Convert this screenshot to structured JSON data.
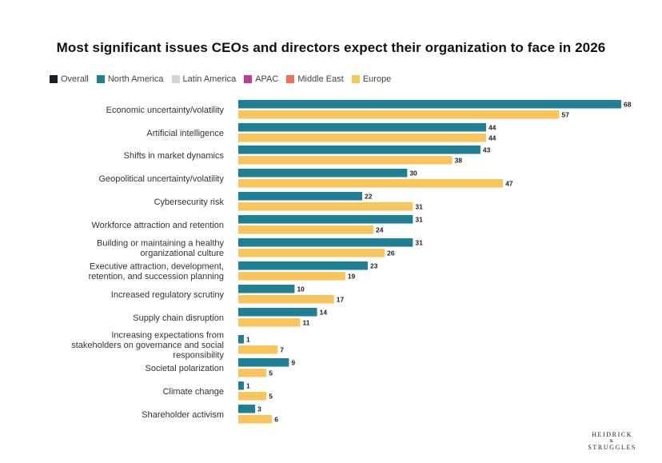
{
  "chart_data": {
    "type": "bar",
    "orientation": "horizontal",
    "title": "Most significant issues CEOs and directors expect their organization to face in 2026",
    "legend": [
      {
        "name": "Overall",
        "color": "#0d2233"
      },
      {
        "name": "North America",
        "color": "#1f7f94"
      },
      {
        "name": "Latin America",
        "color": "#d3d3d3"
      },
      {
        "name": "APAC",
        "color": "#c0399b"
      },
      {
        "name": "Middle East",
        "color": "#ef7155"
      },
      {
        "name": "Europe",
        "color": "#f9c45c"
      }
    ],
    "legend_position": "top-left",
    "categories": [
      [
        "Economic uncertainty/volatility"
      ],
      [
        "Artificial intelligence"
      ],
      [
        "Shifts in market dynamics"
      ],
      [
        "Geopolitical uncertainty/volatility"
      ],
      [
        "Cybersecurity risk"
      ],
      [
        "Workforce attraction and retention"
      ],
      [
        "Building or maintaining a healthy",
        "organizational culture"
      ],
      [
        "Executive attraction, development,",
        "retention, and succession planning"
      ],
      [
        "Increased regulatory scrutiny"
      ],
      [
        "Supply chain disruption"
      ],
      [
        "Increasing expectations from",
        "stakeholders on governance and social",
        "responsibility"
      ],
      [
        "Societal polarization"
      ],
      [
        "Climate change"
      ],
      [
        "Shareholder activism"
      ]
    ],
    "series": [
      {
        "name": "North America",
        "color": "#1f7f94",
        "values": [
          68,
          44,
          43,
          30,
          22,
          31,
          31,
          23,
          10,
          14,
          1,
          9,
          1,
          3
        ]
      },
      {
        "name": "Europe",
        "color": "#f9c45c",
        "values": [
          57,
          44,
          38,
          47,
          31,
          24,
          26,
          19,
          17,
          11,
          7,
          5,
          5,
          6
        ]
      }
    ],
    "xlim": [
      0,
      68
    ],
    "grid": false
  },
  "logo": {
    "line1": "HEIDRICK",
    "amp": "&",
    "line2": "STRUGGLES"
  }
}
